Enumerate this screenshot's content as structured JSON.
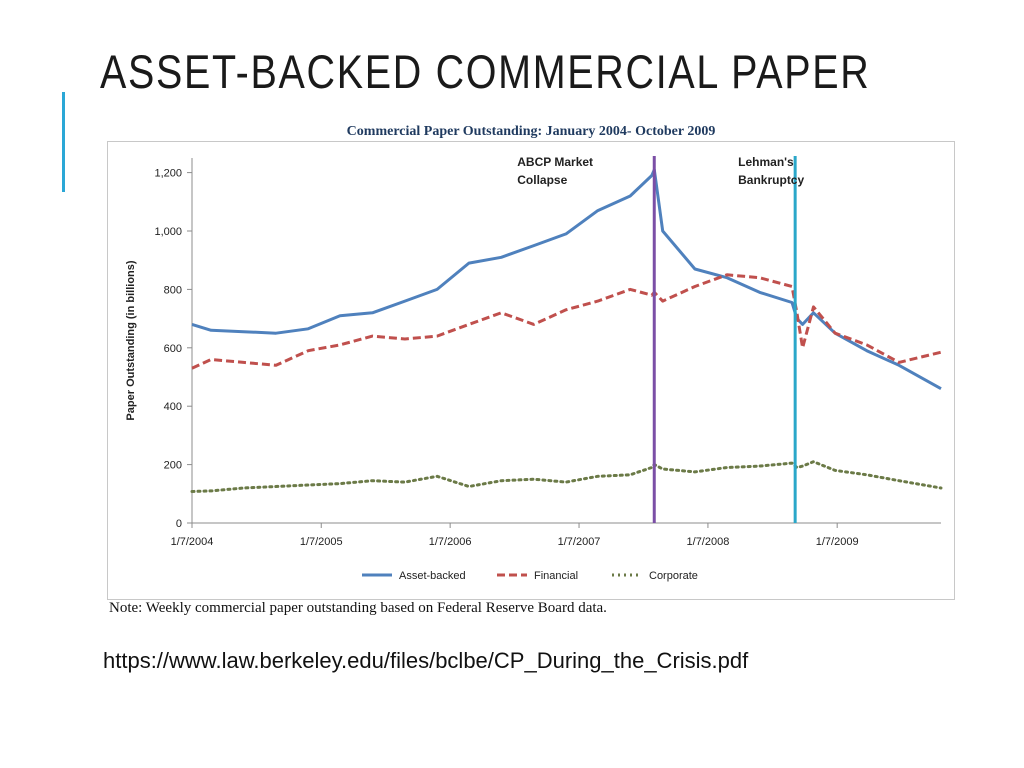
{
  "slide": {
    "title": "ASSET-BACKED COMMERCIAL PAPER",
    "source_url": "https://www.law.berkeley.edu/files/bclbe/CP_During_the_Crisis.pdf",
    "accent_color": "#2aa7d6"
  },
  "chart_data": {
    "type": "line",
    "title": "Commercial Paper Outstanding: January 2004- October 2009",
    "ylabel": "Paper Outstanding (in billions)",
    "xlabel": "",
    "note": "Note: Weekly commercial paper outstanding based on Federal Reserve Board data.",
    "ylim": [
      0,
      1250
    ],
    "yticks": [
      0,
      200,
      400,
      600,
      800,
      "1,000",
      "1,200"
    ],
    "xlim": [
      "2004-01-07",
      "2009-10-28"
    ],
    "xticks": [
      "1/7/2004",
      "1/7/2005",
      "1/7/2006",
      "1/7/2007",
      "1/7/2008",
      "1/7/2009"
    ],
    "grid": false,
    "legend_position": "bottom",
    "annotations": [
      {
        "text": [
          "ABCP Market",
          "Collapse"
        ],
        "date": "2007-08-08",
        "color": "#7b4fa6"
      },
      {
        "text": [
          "Lehman's",
          "Bankruptcy"
        ],
        "date": "2008-09-10",
        "color": "#2aa7c9"
      }
    ],
    "series": [
      {
        "name": "Asset-backed",
        "style": "solid",
        "color": "#4f81bd",
        "x": [
          "2004-01-07",
          "2004-03-01",
          "2004-06-01",
          "2004-09-01",
          "2004-12-01",
          "2005-03-01",
          "2005-06-01",
          "2005-09-01",
          "2005-12-01",
          "2006-03-01",
          "2006-06-01",
          "2006-09-01",
          "2006-12-01",
          "2007-03-01",
          "2007-06-01",
          "2007-08-01",
          "2007-08-08",
          "2007-09-01",
          "2007-12-01",
          "2008-03-01",
          "2008-06-01",
          "2008-09-01",
          "2008-09-15",
          "2008-10-01",
          "2008-11-01",
          "2009-01-01",
          "2009-04-01",
          "2009-07-01",
          "2009-10-28"
        ],
        "values": [
          680,
          660,
          655,
          650,
          665,
          710,
          720,
          760,
          800,
          890,
          910,
          950,
          990,
          1070,
          1120,
          1190,
          1210,
          1000,
          870,
          840,
          790,
          755,
          700,
          680,
          720,
          650,
          590,
          540,
          460
        ]
      },
      {
        "name": "Financial",
        "style": "dashed",
        "color": "#c0504d",
        "x": [
          "2004-01-07",
          "2004-03-01",
          "2004-06-01",
          "2004-09-01",
          "2004-12-01",
          "2005-03-01",
          "2005-06-01",
          "2005-09-01",
          "2005-12-01",
          "2006-03-01",
          "2006-06-01",
          "2006-09-01",
          "2006-12-01",
          "2007-03-01",
          "2007-06-01",
          "2007-08-01",
          "2007-08-08",
          "2007-09-01",
          "2007-12-01",
          "2008-03-01",
          "2008-06-01",
          "2008-09-01",
          "2008-09-15",
          "2008-10-01",
          "2008-11-01",
          "2009-01-01",
          "2009-04-01",
          "2009-07-01",
          "2009-10-28"
        ],
        "values": [
          530,
          560,
          550,
          540,
          590,
          610,
          640,
          630,
          640,
          680,
          720,
          680,
          730,
          760,
          800,
          780,
          790,
          760,
          810,
          850,
          840,
          810,
          720,
          600,
          740,
          650,
          610,
          550,
          585
        ]
      },
      {
        "name": "Corporate",
        "style": "dotted",
        "color": "#6b7a47",
        "x": [
          "2004-01-07",
          "2004-03-01",
          "2004-06-01",
          "2004-09-01",
          "2004-12-01",
          "2005-03-01",
          "2005-06-01",
          "2005-09-01",
          "2005-12-01",
          "2006-03-01",
          "2006-06-01",
          "2006-09-01",
          "2006-12-01",
          "2007-03-01",
          "2007-06-01",
          "2007-08-01",
          "2007-08-08",
          "2007-09-01",
          "2007-12-01",
          "2008-03-01",
          "2008-06-01",
          "2008-09-01",
          "2008-09-15",
          "2008-10-01",
          "2008-11-01",
          "2009-01-01",
          "2009-04-01",
          "2009-07-01",
          "2009-10-28"
        ],
        "values": [
          108,
          110,
          120,
          125,
          130,
          135,
          145,
          140,
          160,
          125,
          145,
          150,
          140,
          160,
          165,
          190,
          200,
          185,
          175,
          190,
          195,
          205,
          190,
          195,
          210,
          180,
          165,
          145,
          120
        ]
      }
    ]
  }
}
